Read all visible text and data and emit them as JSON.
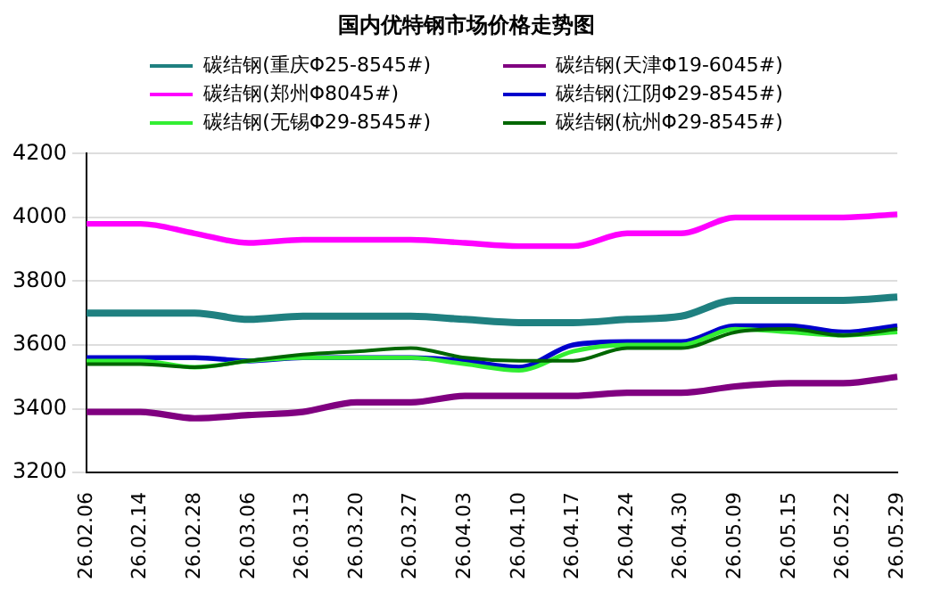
{
  "chart_data": {
    "type": "line",
    "title": "国内优特钢市场价格走势图",
    "categories": [
      "26.02.06",
      "26.02.14",
      "26.02.28",
      "26.03.06",
      "26.03.13",
      "26.03.20",
      "26.03.27",
      "26.04.03",
      "26.04.10",
      "26.04.17",
      "26.04.24",
      "26.04.30",
      "26.05.09",
      "26.05.15",
      "26.05.22",
      "26.05.29"
    ],
    "series": [
      {
        "name": "碳结钢(重庆Φ25-8545#)",
        "color": "#1f8080",
        "values": [
          3700,
          3700,
          3700,
          3680,
          3690,
          3690,
          3690,
          3680,
          3670,
          3670,
          3680,
          3690,
          3740,
          3740,
          3740,
          3750
        ]
      },
      {
        "name": "碳结钢(天津Φ19-6045#)",
        "color": "#800080",
        "values": [
          3390,
          3390,
          3370,
          3380,
          3390,
          3420,
          3420,
          3440,
          3440,
          3440,
          3450,
          3450,
          3470,
          3480,
          3480,
          3500
        ]
      },
      {
        "name": "碳结钢(郑州Φ8045#)",
        "color": "#ff00ff",
        "values": [
          3980,
          3980,
          3950,
          3920,
          3930,
          3930,
          3930,
          3920,
          3910,
          3910,
          3950,
          3950,
          4000,
          4000,
          4000,
          4010
        ]
      },
      {
        "name": "碳结钢(江阴Φ29-8545#)",
        "color": "#0000cc",
        "values": [
          3560,
          3560,
          3560,
          3550,
          3560,
          3560,
          3560,
          3550,
          3530,
          3600,
          3610,
          3610,
          3660,
          3660,
          3640,
          3660
        ]
      },
      {
        "name": "碳结钢(无锡Φ29-8545#)",
        "color": "#33ee33",
        "values": [
          3550,
          3550,
          3530,
          3550,
          3560,
          3560,
          3560,
          3540,
          3520,
          3580,
          3600,
          3600,
          3650,
          3640,
          3630,
          3640
        ]
      },
      {
        "name": "碳结钢(杭州Φ29-8545#)",
        "color": "#006600",
        "values": [
          3540,
          3540,
          3530,
          3550,
          3570,
          3580,
          3590,
          3560,
          3550,
          3550,
          3590,
          3590,
          3640,
          3650,
          3630,
          3650
        ]
      }
    ],
    "ylim": [
      3200,
      4200
    ],
    "yticks": [
      3200,
      3400,
      3600,
      3800,
      4000,
      4200
    ],
    "grid": "y",
    "legend": "top",
    "marker": "none",
    "line_style": "solid"
  }
}
